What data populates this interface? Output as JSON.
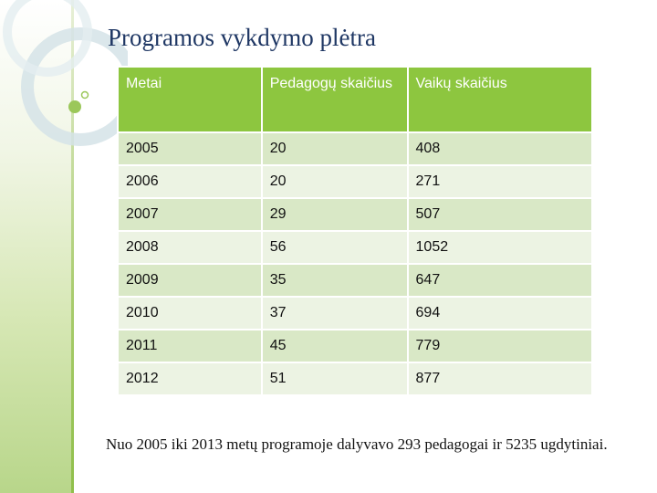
{
  "slide": {
    "title": "Programos vykdymo plėtra",
    "table": {
      "headers": [
        "Metai",
        "Pedagogų skaičius",
        "Vaikų  skaičius"
      ],
      "rows": [
        [
          "2005",
          "20",
          "408"
        ],
        [
          "2006",
          "20",
          "271"
        ],
        [
          "2007",
          "29",
          "507"
        ],
        [
          "2008",
          "56",
          "1052"
        ],
        [
          "2009",
          "35",
          "647"
        ],
        [
          "2010",
          "37",
          "694"
        ],
        [
          "2011",
          "45",
          "779"
        ],
        [
          "2012",
          "51",
          "877"
        ]
      ]
    },
    "summary": "Nuo 2005 iki 2013 metų programoje dalyvavo 293 pedagogai ir 5235 ugdytiniai."
  }
}
